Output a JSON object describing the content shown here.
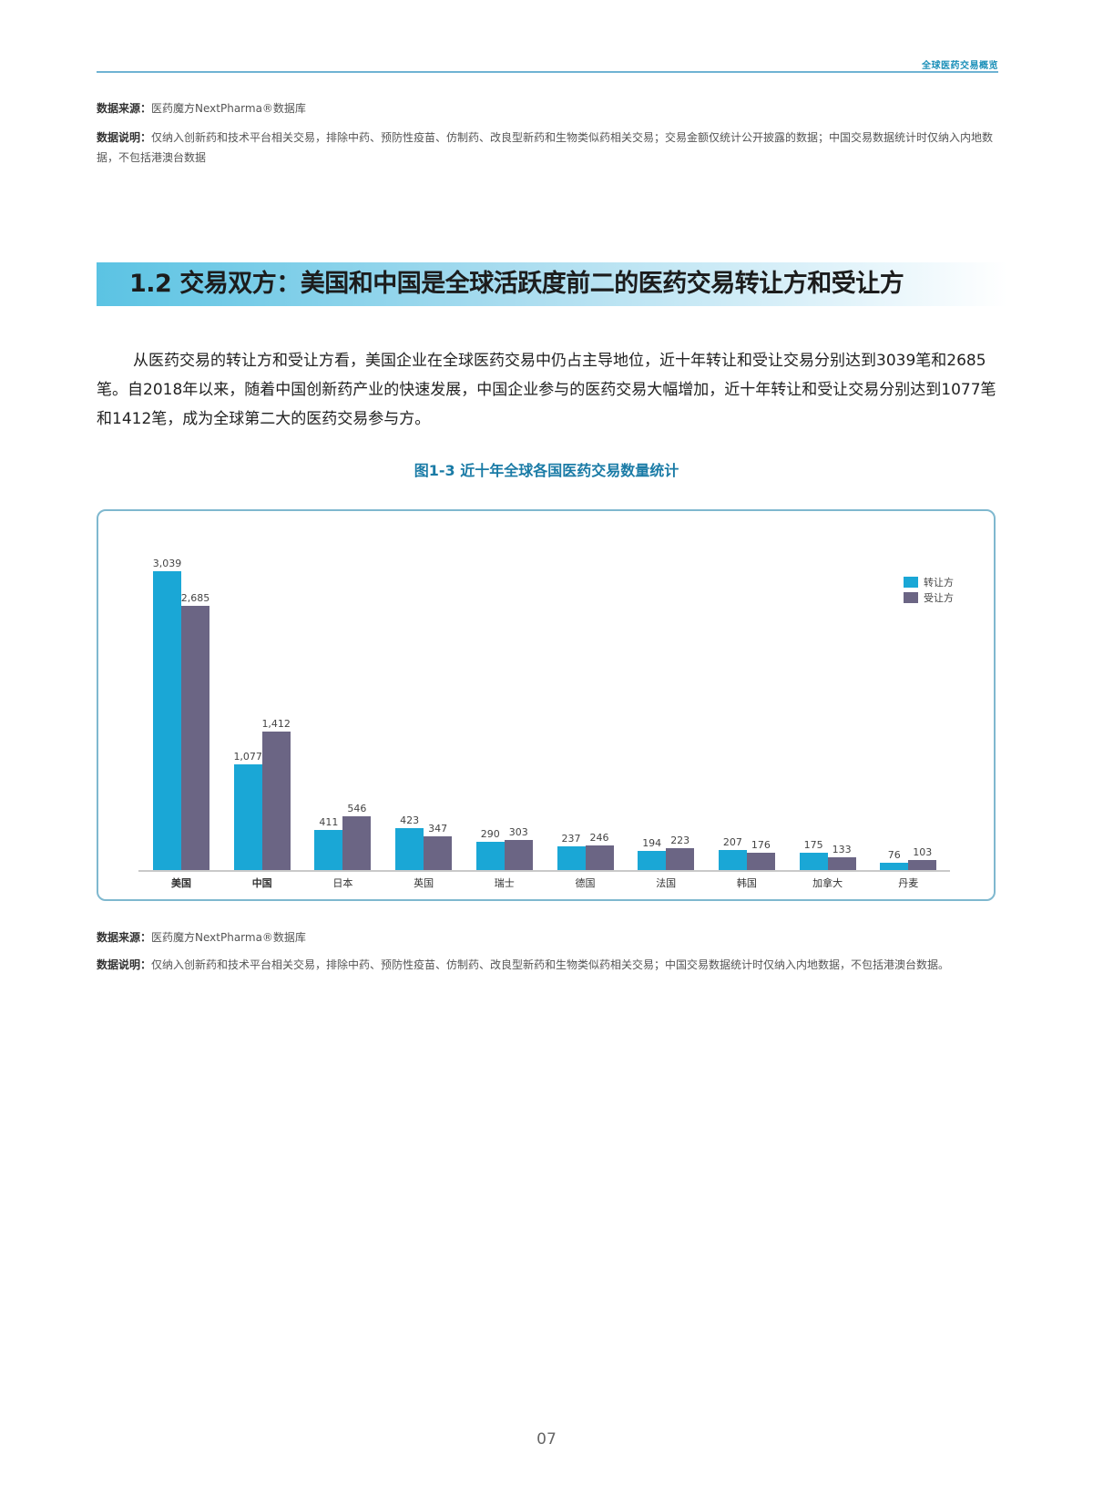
{
  "header": {
    "title": "全球医药交易概览"
  },
  "top_notes": {
    "source_label": "数据来源：",
    "source_text": "医药魔方NextPharma®数据库",
    "note_label": "数据说明：",
    "note_text": "仅纳入创新药和技术平台相关交易，排除中药、预防性疫苗、仿制药、改良型新药和生物类似药相关交易；交易金额仅统计公开披露的数据；中国交易数据统计时仅纳入内地数据，不包括港澳台数据"
  },
  "section": {
    "title": "1.2 交易双方：美国和中国是全球活跃度前二的医药交易转让方和受让方"
  },
  "paragraph": "从医药交易的转让方和受让方看，美国企业在全球医药交易中仍占主导地位，近十年转让和受让交易分别达到3039笔和2685笔。自2018年以来，随着中国创新药产业的快速发展，中国企业参与的医药交易大幅增加，近十年转让和受让交易分别达到1077笔和1412笔，成为全球第二大的医药交易参与方。",
  "figure": {
    "title": "图1-3 近十年全球各国医药交易数量统计"
  },
  "chart_data": {
    "type": "bar",
    "title": "图1-3 近十年全球各国医药交易数量统计",
    "xlabel": "",
    "ylabel": "",
    "categories": [
      "美国",
      "中国",
      "日本",
      "英国",
      "瑞士",
      "德国",
      "法国",
      "韩国",
      "加拿大",
      "丹麦"
    ],
    "series": [
      {
        "name": "转让方",
        "color": "#1aa7d6",
        "values": [
          3039,
          1077,
          411,
          423,
          290,
          237,
          194,
          207,
          175,
          76
        ],
        "labels": [
          "3,039",
          "1,077",
          "411",
          "423",
          "290",
          "237",
          "194",
          "207",
          "175",
          "76"
        ]
      },
      {
        "name": "受让方",
        "color": "#6b6584",
        "values": [
          2685,
          1412,
          546,
          347,
          303,
          246,
          223,
          176,
          133,
          103
        ],
        "labels": [
          "2,685",
          "1,412",
          "546",
          "347",
          "303",
          "246",
          "223",
          "176",
          "133",
          "103"
        ]
      }
    ],
    "ylim": [
      0,
      3039
    ],
    "grid": false,
    "legend_position": "top-right",
    "data_labels": true
  },
  "bottom_notes": {
    "source_label": "数据来源：",
    "source_text": "医药魔方NextPharma®数据库",
    "note_label": "数据说明：",
    "note_text": "仅纳入创新药和技术平台相关交易，排除中药、预防性疫苗、仿制药、改良型新药和生物类似药相关交易；中国交易数据统计时仅纳入内地数据，不包括港澳台数据。"
  },
  "page_number": "07"
}
